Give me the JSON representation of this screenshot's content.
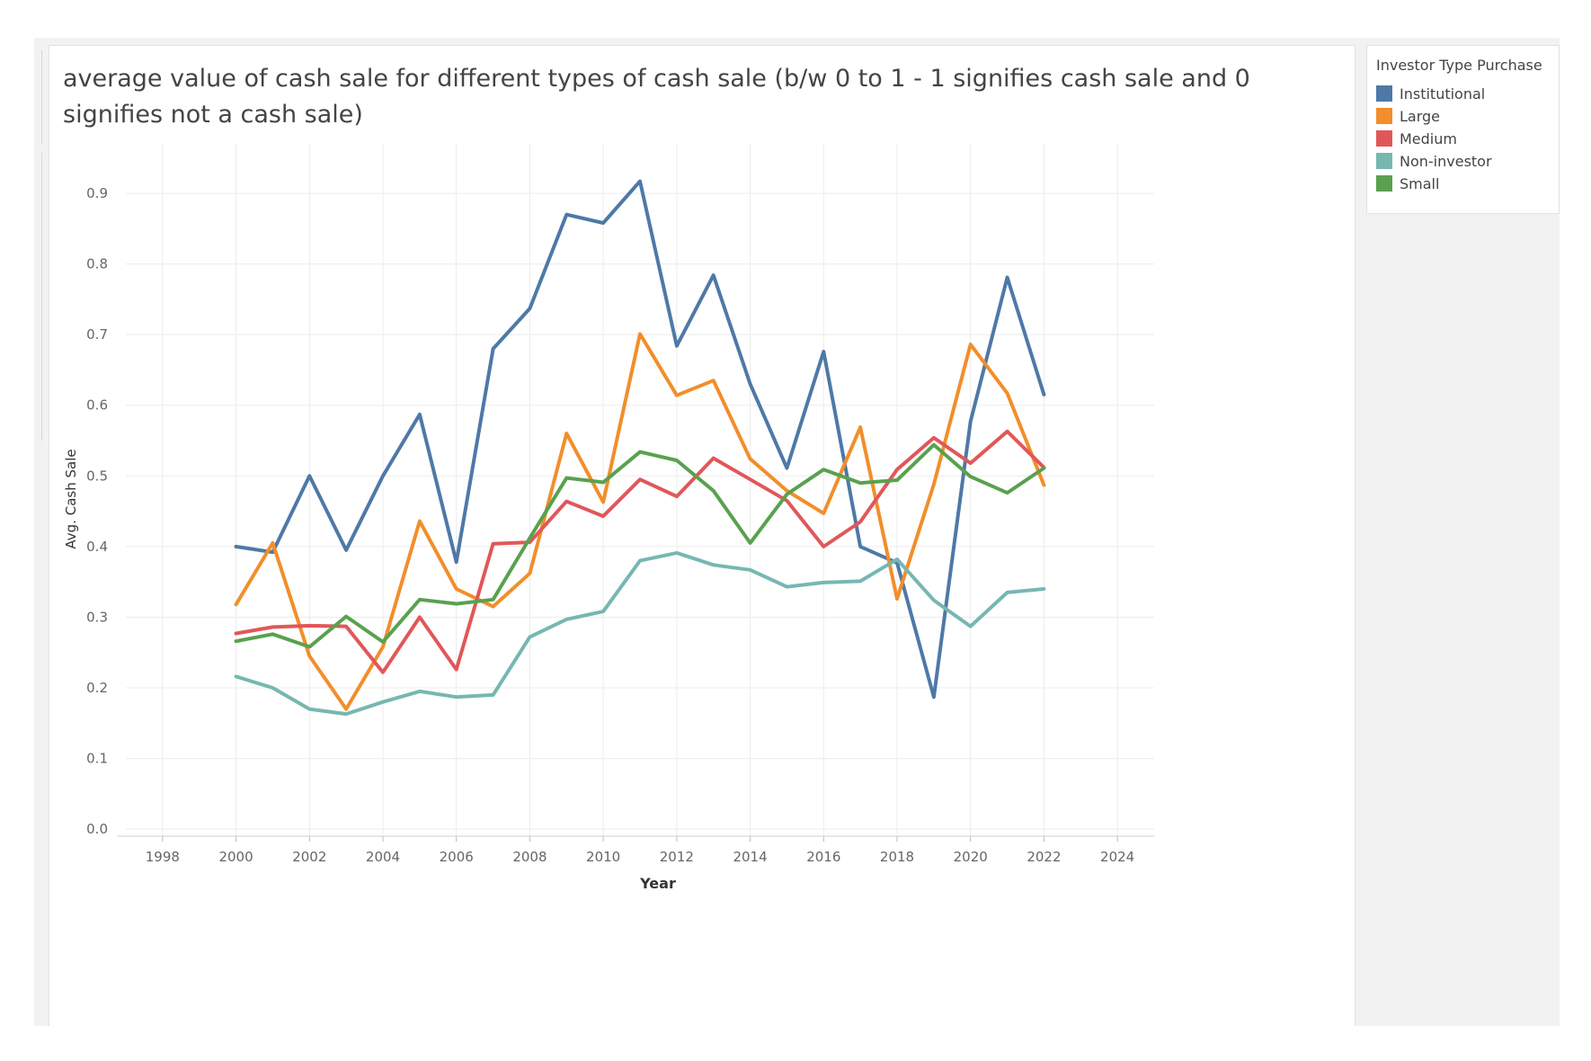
{
  "chart_data": {
    "type": "line",
    "title": "average value of cash sale for different types of cash sale (b/w 0 to 1 - 1 signifies cash sale and 0 signifies not a cash sale)",
    "xlabel": "Year",
    "ylabel": "Avg. Cash Sale",
    "xlim": [
      1997,
      2025
    ],
    "ylim": [
      -0.01,
      0.97
    ],
    "x_ticks": [
      1998,
      2000,
      2002,
      2004,
      2006,
      2008,
      2010,
      2012,
      2014,
      2016,
      2018,
      2020,
      2022,
      2024
    ],
    "y_ticks": [
      0.0,
      0.1,
      0.2,
      0.3,
      0.4,
      0.5,
      0.6,
      0.7,
      0.8,
      0.9
    ],
    "grid": true,
    "legend_title": "Investor Type Purchase",
    "legend_position": "right",
    "x": [
      2000,
      2001,
      2002,
      2003,
      2004,
      2005,
      2006,
      2007,
      2008,
      2009,
      2010,
      2011,
      2012,
      2013,
      2014,
      2015,
      2016,
      2017,
      2018,
      2019,
      2020,
      2021,
      2022
    ],
    "series": [
      {
        "name": "Institutional",
        "color": "#4e79a7",
        "values": [
          0.4,
          0.392,
          0.5,
          0.395,
          0.5,
          0.587,
          0.378,
          0.68,
          0.737,
          0.87,
          0.858,
          0.917,
          0.684,
          0.784,
          0.63,
          0.511,
          0.676,
          0.4,
          0.377,
          0.187,
          0.577,
          0.781,
          0.615
        ]
      },
      {
        "name": "Large",
        "color": "#f28e2b",
        "values": [
          0.318,
          0.405,
          0.245,
          0.17,
          0.258,
          0.436,
          0.34,
          0.315,
          0.362,
          0.56,
          0.463,
          0.701,
          0.614,
          0.635,
          0.524,
          0.479,
          0.447,
          0.569,
          0.326,
          0.488,
          0.686,
          0.617,
          0.487
        ]
      },
      {
        "name": "Medium",
        "color": "#e15759",
        "values": [
          0.277,
          0.286,
          0.288,
          0.287,
          0.222,
          0.3,
          0.226,
          0.404,
          0.406,
          0.464,
          0.443,
          0.495,
          0.471,
          0.525,
          0.495,
          0.465,
          0.4,
          0.435,
          0.509,
          0.554,
          0.518,
          0.563,
          0.512
        ]
      },
      {
        "name": "Non-investor",
        "color": "#76b7b2",
        "values": [
          0.216,
          0.2,
          0.17,
          0.163,
          0.18,
          0.195,
          0.187,
          0.19,
          0.272,
          0.297,
          0.308,
          0.38,
          0.391,
          0.374,
          0.367,
          0.343,
          0.349,
          0.351,
          0.382,
          0.324,
          0.287,
          0.335,
          0.34
        ]
      },
      {
        "name": "Small",
        "color": "#59a14f",
        "values": [
          0.266,
          0.276,
          0.258,
          0.301,
          0.265,
          0.325,
          0.319,
          0.325,
          0.412,
          0.497,
          0.491,
          0.534,
          0.522,
          0.479,
          0.405,
          0.474,
          0.509,
          0.49,
          0.494,
          0.544,
          0.499,
          0.476,
          0.511
        ]
      }
    ]
  }
}
